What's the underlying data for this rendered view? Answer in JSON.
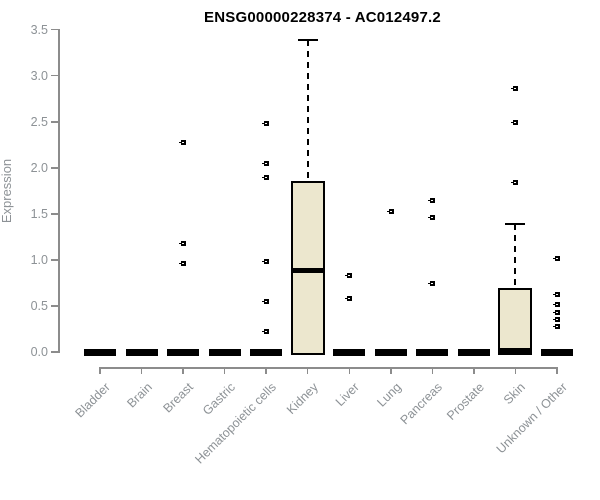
{
  "chart_data": {
    "type": "boxplot",
    "title": "ENSG00000228374 - AC012497.2",
    "ylabel": "Expression",
    "xlabel": "",
    "ylim": [
      0.0,
      3.5
    ],
    "ytick_step": 0.5,
    "ytick_labels": [
      "0.0",
      "0.5",
      "1.0",
      "1.5",
      "2.0",
      "2.5",
      "3.0",
      "3.5"
    ],
    "grid": false,
    "colors": {
      "box_fill": "#ece7ce",
      "box_border": "#000000",
      "median": "#000000",
      "axis": "#8c8c8c",
      "tick_text": "#8d9296",
      "title_text": "#000000",
      "outlier": "#000000",
      "background": "#ffffff"
    },
    "categories": [
      {
        "label": "Bladder",
        "q1": 0,
        "median": 0,
        "q3": 0,
        "whisker_high": 0,
        "outliers": []
      },
      {
        "label": "Brain",
        "q1": 0,
        "median": 0,
        "q3": 0,
        "whisker_high": 0,
        "outliers": []
      },
      {
        "label": "Breast",
        "q1": 0,
        "median": 0,
        "q3": 0,
        "whisker_high": 0,
        "outliers": [
          2.28,
          1.18,
          0.96
        ]
      },
      {
        "label": "Gastric",
        "q1": 0,
        "median": 0,
        "q3": 0,
        "whisker_high": 0,
        "outliers": []
      },
      {
        "label": "Hematopoietic cells",
        "q1": 0,
        "median": 0,
        "q3": 0,
        "whisker_high": 0,
        "outliers": [
          2.48,
          2.05,
          1.89,
          0.98,
          0.55,
          0.22
        ]
      },
      {
        "label": "Kidney",
        "q1": 0,
        "median": 0.89,
        "q3": 1.86,
        "whisker_high": 3.39,
        "outliers": []
      },
      {
        "label": "Liver",
        "q1": 0,
        "median": 0,
        "q3": 0,
        "whisker_high": 0,
        "outliers": [
          0.83,
          0.58
        ]
      },
      {
        "label": "Lung",
        "q1": 0,
        "median": 0,
        "q3": 0,
        "whisker_high": 0,
        "outliers": [
          1.53
        ]
      },
      {
        "label": "Pancreas",
        "q1": 0,
        "median": 0,
        "q3": 0,
        "whisker_high": 0,
        "outliers": [
          1.64,
          1.46,
          0.74
        ]
      },
      {
        "label": "Prostate",
        "q1": 0,
        "median": 0,
        "q3": 0,
        "whisker_high": 0,
        "outliers": []
      },
      {
        "label": "Skin",
        "q1": 0,
        "median": 0.02,
        "q3": 0.69,
        "whisker_high": 1.39,
        "outliers": [
          2.86,
          2.49,
          1.84
        ]
      },
      {
        "label": "Unknown / Other",
        "q1": 0,
        "median": 0,
        "q3": 0,
        "whisker_high": 0,
        "outliers": [
          1.02,
          0.62,
          0.52,
          0.43,
          0.35,
          0.28
        ]
      }
    ]
  }
}
